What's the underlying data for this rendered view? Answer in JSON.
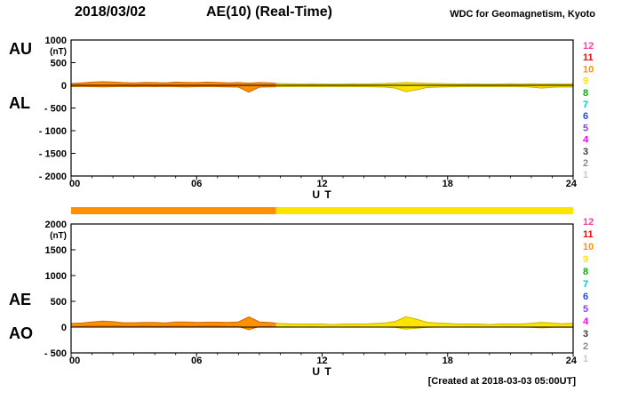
{
  "header": {
    "date": "2018/03/02",
    "title": "AE(10) (Real-Time)",
    "source": "WDC for Geomagnetism, Kyoto"
  },
  "footer": {
    "created_at": "[Created at 2018-03-03 05:00UT]"
  },
  "station_scale": {
    "counts": [
      12,
      11,
      10,
      9,
      8,
      7,
      6,
      5,
      4,
      3,
      2,
      1
    ],
    "colors": {
      "12": "#ff3ca8",
      "11": "#ff0000",
      "10": "#ff9000",
      "9": "#ffe400",
      "8": "#00b400",
      "7": "#00c8c8",
      "6": "#2048ff",
      "5": "#8a3cff",
      "4": "#ff00ff",
      "3": "#404040",
      "2": "#8c8c8c",
      "1": "#c8c8c8"
    }
  },
  "trace_stroke": {
    "10": "#d26800",
    "9": "#c8b400"
  },
  "station_segments": [
    {
      "start": 0,
      "end": 9.8,
      "count": 10
    },
    {
      "start": 9.8,
      "end": 24,
      "count": 9
    }
  ],
  "chart_data": [
    {
      "type": "area",
      "name": "AU/AL panel",
      "left_labels": [
        "AU",
        "AL"
      ],
      "unit": "(nT)",
      "xlabel": "U T",
      "xlim": [
        0,
        24
      ],
      "ylim": [
        -2000,
        1000
      ],
      "yticks": [
        {
          "v": 1000,
          "label": "1000"
        },
        {
          "v": 500,
          "label": "500"
        },
        {
          "v": 0,
          "label": "0"
        },
        {
          "v": -500,
          "label": "- 500"
        },
        {
          "v": -1000,
          "label": "- 1000"
        },
        {
          "v": -1500,
          "label": "- 1500"
        },
        {
          "v": -2000,
          "label": "- 2000"
        }
      ],
      "xticks": [
        {
          "v": 0,
          "label": "00"
        },
        {
          "v": 6,
          "label": "06"
        },
        {
          "v": 12,
          "label": "12"
        },
        {
          "v": 18,
          "label": "18"
        },
        {
          "v": 24,
          "label": "24"
        }
      ],
      "x": [
        0,
        0.5,
        1,
        1.5,
        2,
        2.5,
        3,
        3.5,
        4,
        4.5,
        5,
        5.5,
        6,
        6.5,
        7,
        7.5,
        8,
        8.5,
        9,
        9.5,
        10,
        10.5,
        11,
        11.5,
        12,
        12.5,
        13,
        13.5,
        14,
        14.5,
        15,
        15.5,
        16,
        16.5,
        17,
        17.5,
        18,
        18.5,
        19,
        19.5,
        20,
        20.5,
        21,
        21.5,
        22,
        22.5,
        23,
        23.5,
        24
      ],
      "series": [
        {
          "name": "AU",
          "values": [
            40,
            55,
            70,
            80,
            75,
            60,
            55,
            65,
            60,
            55,
            70,
            65,
            60,
            70,
            65,
            55,
            60,
            50,
            60,
            55,
            40,
            35,
            30,
            35,
            30,
            25,
            30,
            35,
            30,
            35,
            40,
            50,
            60,
            55,
            45,
            40,
            35,
            30,
            35,
            30,
            25,
            30,
            35,
            30,
            35,
            30,
            35,
            30,
            35
          ]
        },
        {
          "name": "AL",
          "values": [
            -30,
            -25,
            -30,
            -35,
            -30,
            -25,
            -30,
            -25,
            -30,
            -25,
            -30,
            -35,
            -30,
            -25,
            -30,
            -35,
            -40,
            -150,
            -40,
            -35,
            -30,
            -25,
            -30,
            -25,
            -30,
            -25,
            -30,
            -25,
            -30,
            -35,
            -40,
            -60,
            -140,
            -100,
            -50,
            -40,
            -35,
            -30,
            -25,
            -30,
            -25,
            -30,
            -25,
            -30,
            -40,
            -60,
            -45,
            -35,
            -40
          ]
        }
      ]
    },
    {
      "type": "area",
      "name": "AE/AO panel",
      "left_labels": [
        "AE",
        "AO"
      ],
      "unit": "(nT)",
      "xlabel": "U T",
      "xlim": [
        0,
        24
      ],
      "ylim": [
        -500,
        2000
      ],
      "yticks": [
        {
          "v": 2000,
          "label": "2000"
        },
        {
          "v": 1500,
          "label": "1500"
        },
        {
          "v": 1000,
          "label": "1000"
        },
        {
          "v": 500,
          "label": "500"
        },
        {
          "v": 0,
          "label": "0"
        },
        {
          "v": -500,
          "label": "- 500"
        }
      ],
      "xticks": [
        {
          "v": 0,
          "label": "00"
        },
        {
          "v": 6,
          "label": "06"
        },
        {
          "v": 12,
          "label": "12"
        },
        {
          "v": 18,
          "label": "18"
        },
        {
          "v": 24,
          "label": "24"
        }
      ],
      "x": [
        0,
        0.5,
        1,
        1.5,
        2,
        2.5,
        3,
        3.5,
        4,
        4.5,
        5,
        5.5,
        6,
        6.5,
        7,
        7.5,
        8,
        8.5,
        9,
        9.5,
        10,
        10.5,
        11,
        11.5,
        12,
        12.5,
        13,
        13.5,
        14,
        14.5,
        15,
        15.5,
        16,
        16.5,
        17,
        17.5,
        18,
        18.5,
        19,
        19.5,
        20,
        20.5,
        21,
        21.5,
        22,
        22.5,
        23,
        23.5,
        24
      ],
      "series": [
        {
          "name": "AE",
          "values": [
            70,
            80,
            100,
            115,
            105,
            85,
            85,
            90,
            90,
            80,
            100,
            100,
            90,
            95,
            95,
            90,
            100,
            200,
            100,
            90,
            70,
            60,
            60,
            60,
            60,
            50,
            60,
            60,
            60,
            70,
            80,
            110,
            200,
            155,
            95,
            80,
            70,
            60,
            60,
            60,
            50,
            60,
            60,
            60,
            75,
            90,
            80,
            65,
            75
          ]
        },
        {
          "name": "AO",
          "values": [
            5,
            15,
            20,
            22,
            22,
            18,
            13,
            20,
            15,
            15,
            20,
            15,
            15,
            23,
            18,
            10,
            10,
            -50,
            10,
            10,
            5,
            5,
            0,
            5,
            0,
            0,
            0,
            5,
            0,
            0,
            0,
            -5,
            -40,
            -22,
            -3,
            0,
            0,
            0,
            5,
            0,
            0,
            0,
            5,
            0,
            -3,
            -15,
            -5,
            -3,
            -3
          ]
        }
      ]
    }
  ]
}
